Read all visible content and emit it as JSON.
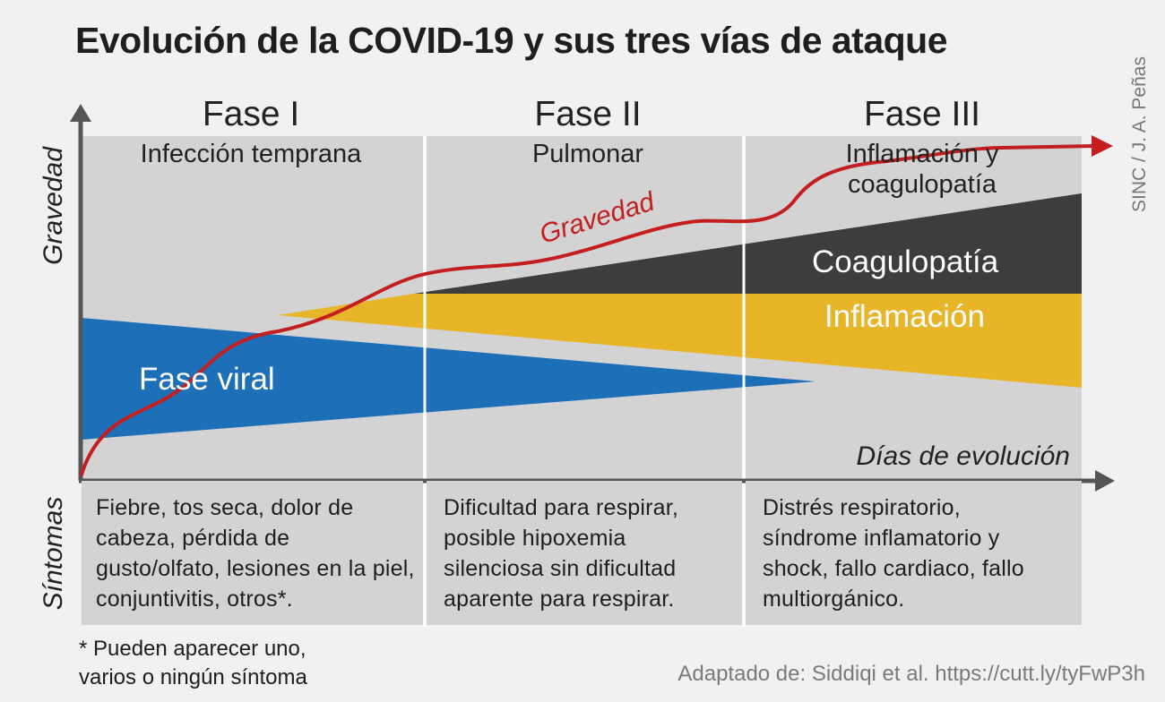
{
  "title": "Evolución de la COVID-19 y sus tres vías de ataque",
  "credit": "SINC / J. A. Peñas",
  "y_axis_label": "Gravedad",
  "symptoms_axis_label": "Síntomas",
  "x_axis_label": "Días de evolución",
  "curve_label": "Gravedad",
  "phases": [
    {
      "name": "Fase I",
      "subtitle": "Infección temprana",
      "symptoms": "Fiebre, tos seca, dolor de cabeza, pérdida de gusto/olfato, lesiones en la piel, conjuntivitis, otros*."
    },
    {
      "name": "Fase II",
      "subtitle": "Pulmonar",
      "symptoms": "Dificultad para respirar, posible hipoxemia silenciosa sin dificultad aparente para respirar."
    },
    {
      "name": "Fase III",
      "subtitle": "Inflamación y coagulopatía",
      "symptoms": "Distrés respiratorio, síndrome inflamatorio y shock, fallo cardiaco, fallo multiorgánico."
    }
  ],
  "bands": {
    "viral": "Fase viral",
    "inflammation": "Inflamación",
    "coagulopathy": "Coagulopatía"
  },
  "footnote": "* Pueden aparecer uno, varios o ningún síntoma",
  "source": "Adaptado de: Siddiqi et al. https://cutt.ly/tyFwP3h",
  "colors": {
    "background": "#f1f1f1",
    "panel": "#d3d3d3",
    "viral": "#1d6fb8",
    "inflammation": "#e8b428",
    "coagulopathy": "#3d3d3d",
    "severity_curve": "#c41e1e",
    "axis": "#555555"
  }
}
